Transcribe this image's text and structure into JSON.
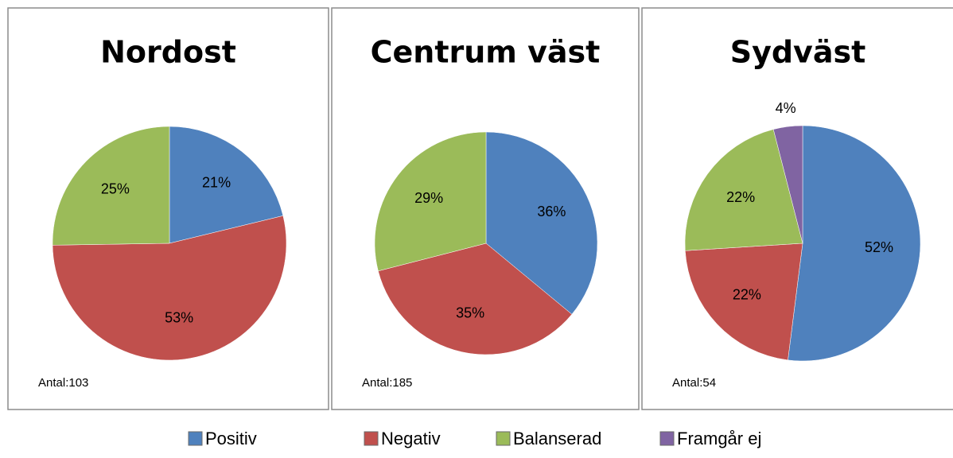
{
  "chart_data": [
    {
      "type": "pie",
      "title": "Nordost",
      "categories": [
        "Positiv",
        "Negativ",
        "Balanserad"
      ],
      "values": [
        21,
        53,
        25
      ],
      "value_labels": [
        "21%",
        "53%",
        "25%"
      ],
      "colors": [
        "#4f81bd",
        "#c0504d",
        "#9bbb59"
      ],
      "annotation": "Antal:103"
    },
    {
      "type": "pie",
      "title": "Centrum väst",
      "categories": [
        "Positiv",
        "Negativ",
        "Balanserad"
      ],
      "values": [
        36,
        35,
        29
      ],
      "value_labels": [
        "36%",
        "35%",
        "29%"
      ],
      "colors": [
        "#4f81bd",
        "#c0504d",
        "#9bbb59"
      ],
      "annotation": "Antal:185"
    },
    {
      "type": "pie",
      "title": "Sydväst",
      "categories": [
        "Positiv",
        "Negativ",
        "Balanserad",
        "Framgår ej"
      ],
      "values": [
        52,
        22,
        22,
        4
      ],
      "value_labels": [
        "52%",
        "22%",
        "22%",
        "4%"
      ],
      "colors": [
        "#4f81bd",
        "#c0504d",
        "#9bbb59",
        "#8064a2"
      ],
      "annotation": "Antal:54"
    }
  ],
  "legend": {
    "items": [
      "Positiv",
      "Negativ",
      "Balanserad",
      "Framgår ej"
    ],
    "colors": [
      "#4f81bd",
      "#c0504d",
      "#9bbb59",
      "#8064a2"
    ]
  }
}
